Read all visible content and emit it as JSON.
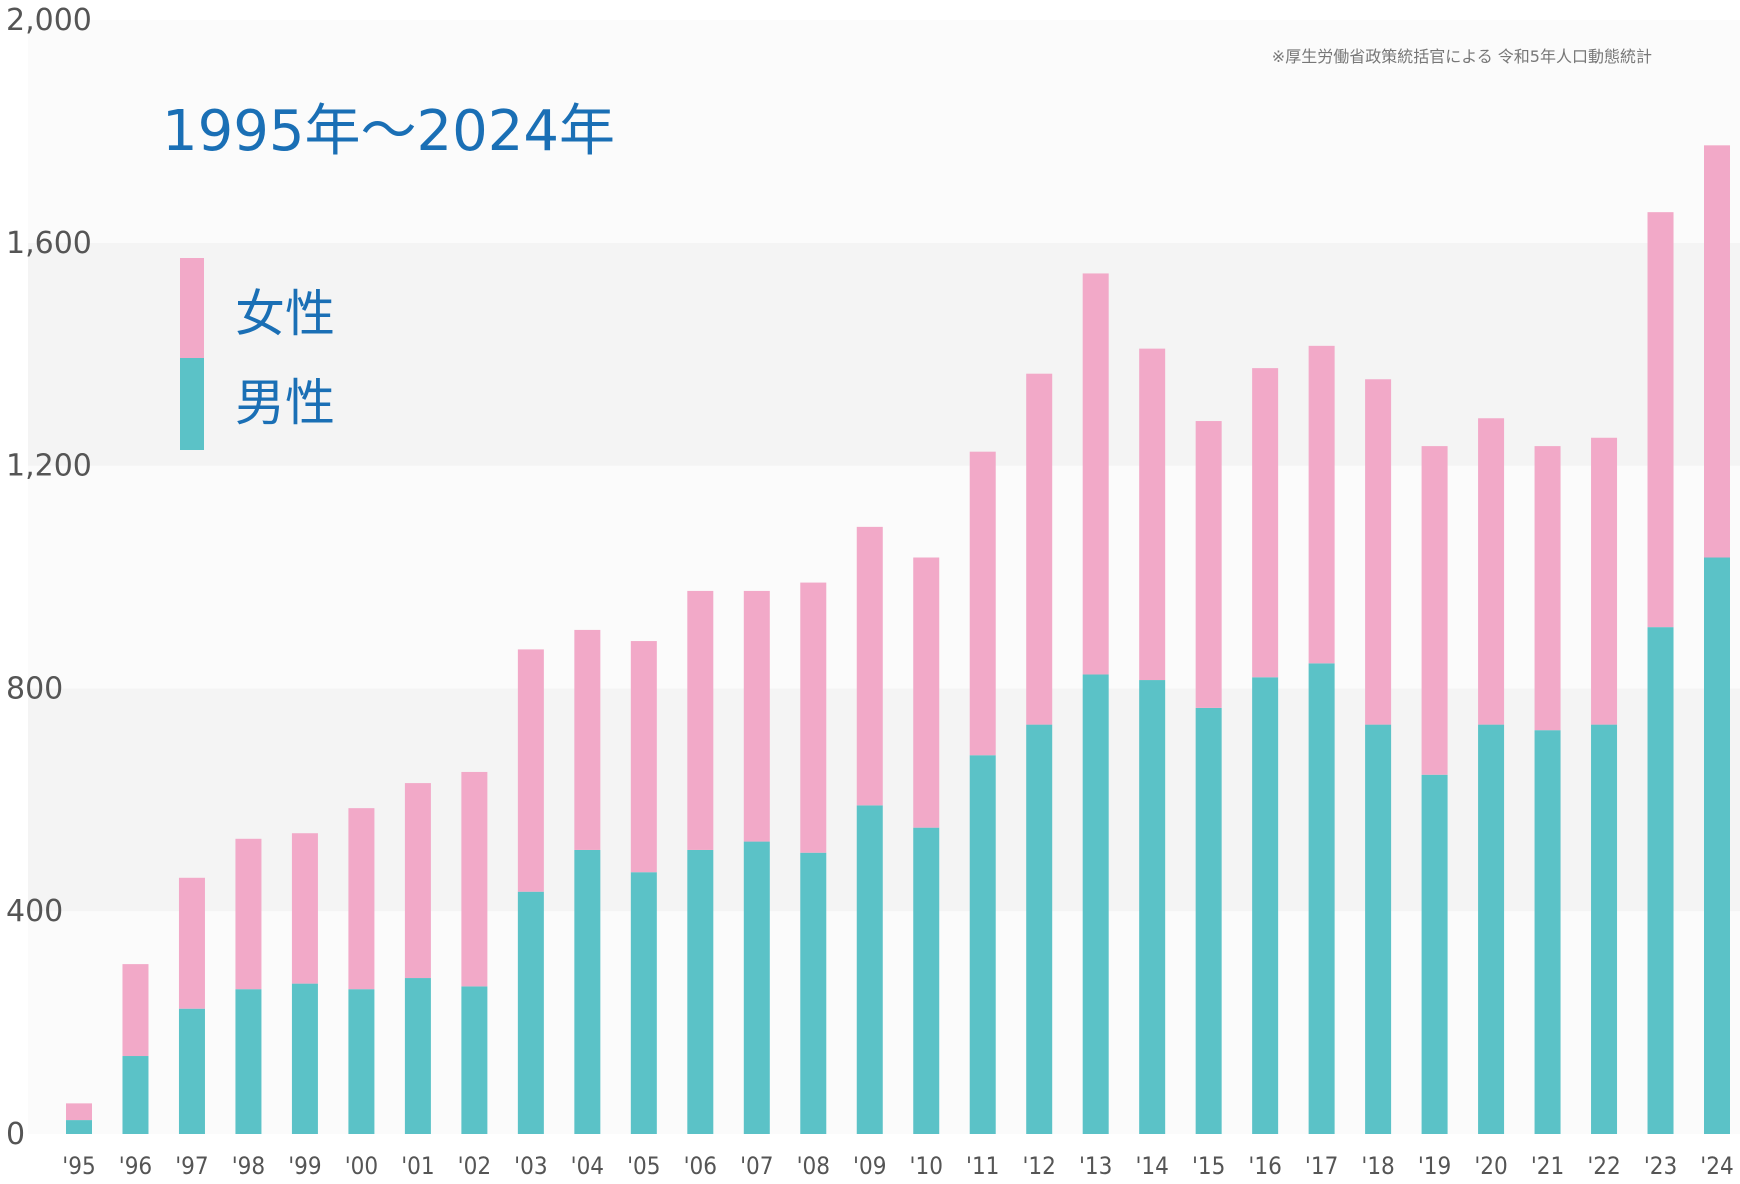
{
  "chart_data": {
    "type": "bar",
    "stacked": true,
    "title": "1995年～2024年",
    "source_note": "※厚生労働省政策統括官による  令和5年人口動態統計",
    "xlabel": "",
    "ylabel": "",
    "ylim": [
      0,
      2000
    ],
    "yticks": [
      "0",
      "400",
      "800",
      "1,200",
      "1,600",
      "2,000"
    ],
    "ytick_values": [
      0,
      400,
      800,
      1200,
      1600,
      2000
    ],
    "categories": [
      "'95",
      "'96",
      "'97",
      "'98",
      "'99",
      "'00",
      "'01",
      "'02",
      "'03",
      "'04",
      "'05",
      "'06",
      "'07",
      "'08",
      "'09",
      "'10",
      "'11",
      "'12",
      "'13",
      "'14",
      "'15",
      "'16",
      "'17",
      "'18",
      "'19",
      "'20",
      "'21",
      "'22",
      "'23",
      "'24"
    ],
    "series": [
      {
        "name": "男性",
        "color": "#5bc2c7",
        "values": [
          25,
          140,
          225,
          260,
          270,
          260,
          280,
          265,
          435,
          510,
          470,
          510,
          525,
          505,
          590,
          550,
          680,
          735,
          825,
          815,
          765,
          820,
          845,
          735,
          645,
          735,
          725,
          735,
          910,
          1035
        ]
      },
      {
        "name": "女性",
        "color": "#f2a9c8",
        "values": [
          30,
          165,
          235,
          270,
          270,
          325,
          350,
          385,
          435,
          395,
          415,
          465,
          450,
          485,
          500,
          485,
          545,
          630,
          720,
          595,
          515,
          555,
          570,
          620,
          590,
          550,
          510,
          515,
          745,
          740
        ]
      }
    ],
    "legend": [
      "女性",
      "男性"
    ],
    "legend_placement": "top-left",
    "grid": "alternating horizontal bands",
    "band_colors": [
      "#f4f4f4",
      "#fbfbfb"
    ]
  }
}
